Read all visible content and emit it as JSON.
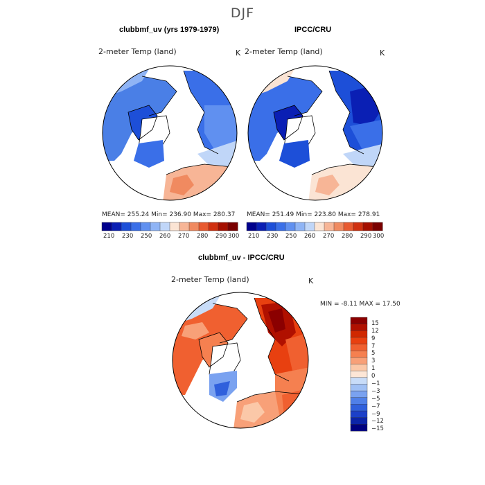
{
  "figure": {
    "season": "DJF"
  },
  "panels": [
    {
      "title": "clubbmf_uv (yrs 1979-1979)",
      "variable": "2-meter Temp (land)",
      "units": "K",
      "stats": "MEAN= 255.24   Min= 236.90   Max= 280.37"
    },
    {
      "title": "IPCC/CRU",
      "variable": "2-meter Temp (land)",
      "units": "K",
      "stats": "MEAN= 251.49   Min= 223.80   Max= 278.91"
    },
    {
      "title": "clubbmf_uv - IPCC/CRU",
      "variable": "2-meter Temp (land)",
      "units": "K",
      "stats": "MIN =   -8.11  MAX =   17.50"
    }
  ],
  "abs_colorbar": {
    "ticks": [
      "210",
      "230",
      "250",
      "260",
      "270",
      "280",
      "290",
      "300"
    ],
    "colors": [
      "#00008c",
      "#0a1fb4",
      "#1d4fd8",
      "#3a6fe8",
      "#6090f0",
      "#8fb4f5",
      "#c0d6f8",
      "#fbe4d4",
      "#f7b596",
      "#f08a60",
      "#e85a30",
      "#d03010",
      "#a50f00",
      "#7a0000"
    ]
  },
  "diff_colorbar": {
    "ticks": [
      "15",
      "12",
      "9",
      "7",
      "5",
      "3",
      "1",
      "0",
      "−1",
      "−3",
      "−5",
      "−7",
      "−9",
      "−12",
      "−15"
    ],
    "colors": [
      "#8b0000",
      "#b01000",
      "#d02800",
      "#e84010",
      "#f06030",
      "#f58050",
      "#f8a078",
      "#fbc8a8",
      "#fde6d6",
      "#c8dcf8",
      "#a0c0f4",
      "#7aa2f0",
      "#5080e8",
      "#3060dc",
      "#1c40c8",
      "#0c24a8",
      "#000080"
    ]
  },
  "map_colors": {
    "ocean": "#ffffff",
    "coast": "#000000"
  }
}
